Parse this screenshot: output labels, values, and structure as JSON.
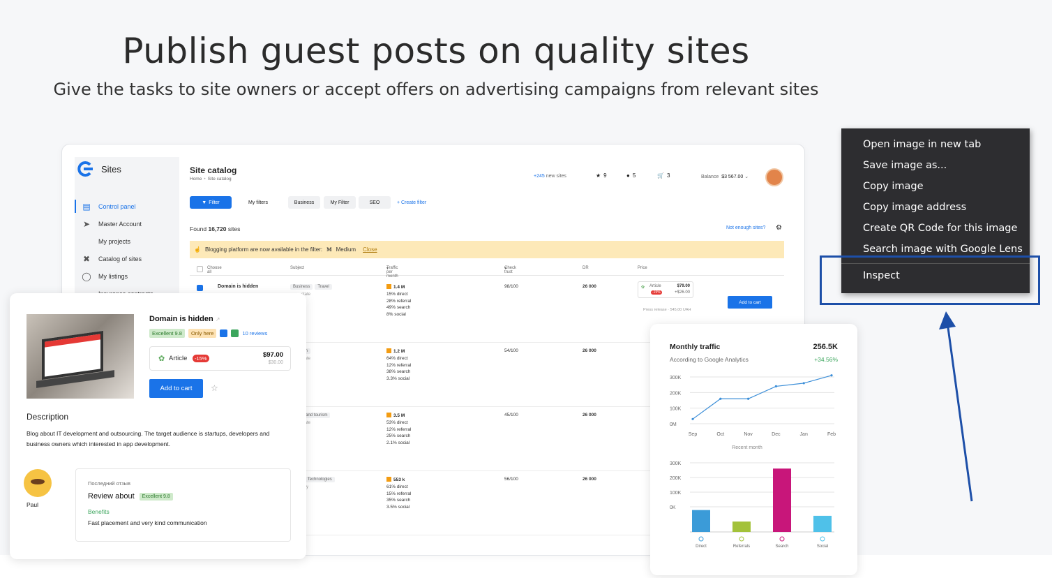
{
  "hero": {
    "title": "Publish guest posts on quality sites",
    "subtitle": "Give the tasks to site owners or accept offers on advertising campaigns from relevant sites"
  },
  "app": {
    "logo_text": "Sites",
    "sidebar": [
      {
        "label": "Control panel",
        "icon": "dashboard-icon",
        "active": true
      },
      {
        "label": "Master Account",
        "icon": "send-icon"
      },
      {
        "label": "My projects",
        "icon": "folder-icon"
      },
      {
        "label": "Catalog of sites",
        "icon": "tools-icon"
      },
      {
        "label": "My listings",
        "icon": "headset-icon"
      },
      {
        "label": "Insurance contracts",
        "icon": "doc-icon"
      }
    ],
    "catalog_title": "Site catalog",
    "breadcrumb": {
      "home": "Home",
      "current": "Site catalog"
    },
    "new_sites": {
      "count": "+245",
      "label": "new sites"
    },
    "stats": {
      "favorites": "9",
      "messages": "5",
      "cart": "3"
    },
    "balance": {
      "label": "Balance",
      "value": "$3 567.00"
    },
    "toolbar": {
      "filter": "Filter",
      "tabs": [
        "My filters",
        "Business",
        "My Filter",
        "SEO"
      ],
      "create_filter": "+ Create filter"
    },
    "found": {
      "prefix": "Found",
      "count": "16,720",
      "suffix": "sites"
    },
    "not_enough": "Not enough sites?",
    "banner": {
      "text": "Blogging platform are now available in the filter:",
      "medium": "Medium",
      "close": "Close"
    },
    "columns": {
      "choose_all": "Choose all",
      "subject": "Subject",
      "traffic": "Traffic per month",
      "check_trust": "Check trust",
      "dr": "DR",
      "price": "Price"
    },
    "rows": [
      {
        "domain": "Domain is hidden",
        "tags": [
          "Business",
          "Travel"
        ],
        "tag2": "state",
        "traffic": "1.4 M",
        "direct": "15% direct",
        "referral": "28% referral",
        "search": "49% search",
        "social": "8% social",
        "trust": "98/100",
        "dr": "26 000",
        "price": "$79.00",
        "price_extra": "+$26.00",
        "article": "Article",
        "disc": "-15%",
        "press": "Press release · 545,00 UAH",
        "add": "Add to cart"
      },
      {
        "domain": "",
        "tags": [
          "Tourism"
        ],
        "tag2": "state",
        "traffic": "1.2 M",
        "direct": "64% direct",
        "referral": "12% referral",
        "search": "38% search",
        "social": "3.3% social",
        "trust": "54/100",
        "dr": "26 000"
      },
      {
        "domain": "",
        "tags": [
          "Travel and tourism"
        ],
        "tag2": "state",
        "traffic": "3.5 M",
        "direct": "53% direct",
        "referral": "12% referral",
        "search": "25% search",
        "social": "2.1% social",
        "trust": "45/100",
        "dr": "26 000"
      },
      {
        "domain": "",
        "tags": [
          "tion",
          "Technologies"
        ],
        "tag2": "etry",
        "traffic": "553 k",
        "direct": "61% direct",
        "referral": "15% referral",
        "search": "35% search",
        "social": "3.5% social",
        "trust": "56/100",
        "dr": "26 000"
      }
    ]
  },
  "detail_card": {
    "domain": "Domain is hidden",
    "rating": "Excellent 9.8",
    "only_here": "Only here",
    "reviews": "10 reviews",
    "article": "Article",
    "discount": "-15%",
    "price": "$97.00",
    "old_price": "$30.00",
    "add_to_cart": "Add to cart",
    "description_title": "Description",
    "description": "Blog about IT development and outsourcing. The target audience is startups, developers and business owners which interested in app development.",
    "reviewer": "Paul",
    "last_review_label": "Последний отзыв",
    "review_title": "Review about",
    "review_rating": "Excellent 9.8",
    "benefits_label": "Benefits",
    "review_text": "Fast placement and very kind communication"
  },
  "analytics": {
    "title": "Monthly traffic",
    "subtitle": "According to Google Analytics",
    "total": "256.5K",
    "change": "+34.56%",
    "recent_label": "Recent month",
    "chart_data": [
      {
        "type": "line",
        "x": [
          "Sep",
          "Oct",
          "Nov",
          "Dec",
          "Jan",
          "Feb"
        ],
        "yticks": [
          "300K",
          "200K",
          "100K",
          "0M"
        ],
        "ylim": [
          0,
          300000
        ],
        "values": [
          30000,
          160000,
          160000,
          240000,
          260000,
          310000
        ]
      },
      {
        "type": "bar",
        "categories": [
          "Direct",
          "Referrals",
          "Search",
          "Social"
        ],
        "yticks": [
          "300K",
          "200K",
          "100K",
          "0K"
        ],
        "values": [
          95000,
          45000,
          275000,
          70000
        ],
        "colors": [
          "#3b9bd8",
          "#a3c23a",
          "#c8167a",
          "#4fc1e9"
        ]
      }
    ]
  },
  "context_menu": {
    "items": [
      "Open image in new tab",
      "Save image as...",
      "Copy image",
      "Copy image address",
      "Create QR Code for this image",
      "Search image with Google Lens"
    ],
    "inspect": "Inspect"
  }
}
